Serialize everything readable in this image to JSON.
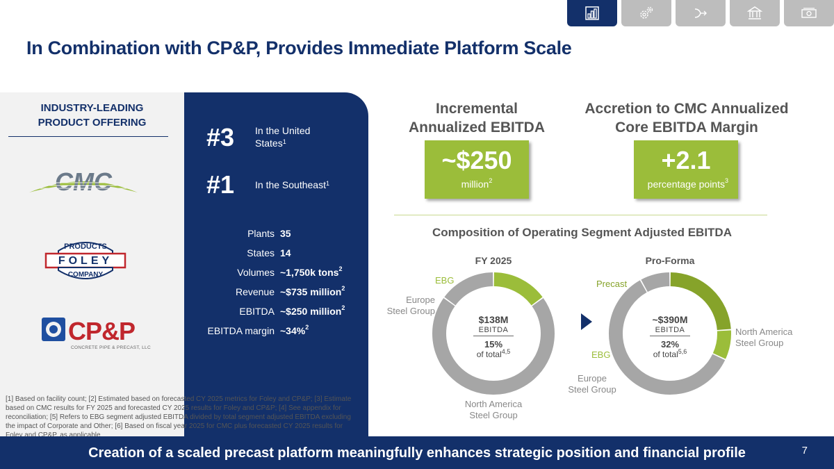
{
  "nav": {
    "tabs": [
      {
        "icon": "bar-chart-icon",
        "active": true
      },
      {
        "icon": "gears-icon",
        "active": false
      },
      {
        "icon": "merge-arrow-icon",
        "active": false
      },
      {
        "icon": "bank-icon",
        "active": false
      },
      {
        "icon": "money-icon",
        "active": false
      }
    ]
  },
  "title": "In Combination with CP&P, Provides Immediate Platform Scale",
  "left": {
    "heading_line1": "INDUSTRY-LEADING",
    "heading_line2": "PRODUCT OFFERING",
    "logos": {
      "cmc": "CMC",
      "foley_top": "PRODUCTS",
      "foley_mid": "FOLEY",
      "foley_bottom": "COMPANY",
      "cpp": "CP&P",
      "cpp_sub": "CONCRETE PIPE & PRECAST, LLC"
    }
  },
  "rankings": [
    {
      "rank": "#3",
      "desc_line1": "In the United",
      "desc_line2": "States",
      "sup": "1"
    },
    {
      "rank": "#1",
      "desc_line1": "In the Southeast",
      "desc_line2": "",
      "sup": "1"
    }
  ],
  "stats": [
    {
      "label": "Plants",
      "value": "35",
      "sup": ""
    },
    {
      "label": "States",
      "value": "14",
      "sup": ""
    },
    {
      "label": "Volumes",
      "value": "~1,750k tons",
      "sup": "2"
    },
    {
      "label": "Revenue",
      "value": "~$735 million",
      "sup": "2"
    },
    {
      "label": "EBITDA",
      "value": "~$250 million",
      "sup": "2"
    },
    {
      "label": "EBITDA margin",
      "value": "~34%",
      "sup": "2"
    }
  ],
  "footnotes": "[1] Based on facility count; [2] Estimated based on forecasted CY 2025 metrics for Foley and CP&P; [3] Estimate based on CMC results for FY 2025 and forecasted CY 2025 results for Foley and CP&P; [4] See appendix for reconciliation; [5] Refers to EBG segment adjusted EBITDA divided by total segment adjusted EBITDA excluding the impact of Corporate and Other; [6] Based on fiscal year 2025 for CMC plus forecasted CY 2025 results for Foley and CP&P, as applicable",
  "kpis": [
    {
      "title_line1": "Incremental",
      "title_line2": "Annualized EBITDA",
      "big": "~$250",
      "small": "million",
      "sup": "2"
    },
    {
      "title_line1": "Accretion to CMC Annualized",
      "title_line2": "Core EBITDA Margin",
      "big": "+2.1",
      "small": "percentage points",
      "sup": "3"
    }
  ],
  "composition_title": "Composition of Operating Segment Adjusted EBITDA",
  "colors": {
    "navy": "#13306a",
    "green": "#9bbd3a",
    "dark_green": "#86a32a",
    "grey": "#a6a6a6"
  },
  "chart_data": [
    {
      "type": "pie",
      "title": "FY 2025",
      "donut": true,
      "categories": [
        "EBG",
        "North America Steel Group",
        "Europe Steel Group"
      ],
      "values": [
        15,
        70,
        15
      ],
      "colors": [
        "#9bbd3a",
        "#a6a6a6",
        "#a6a6a6"
      ],
      "center": {
        "value": "$138M",
        "label": "EBITDA",
        "pct": "15%",
        "note": "of total",
        "note_sup": "4,5"
      },
      "labels": {
        "ebg": "EBG",
        "europe_line1": "Europe",
        "europe_line2": "Steel Group",
        "na_line1": "North America",
        "na_line2": "Steel Group"
      }
    },
    {
      "type": "pie",
      "title": "Pro-Forma",
      "donut": true,
      "categories": [
        "Precast",
        "EBG",
        "North America Steel Group",
        "Europe Steel Group"
      ],
      "values": [
        24,
        8,
        60,
        8
      ],
      "colors": [
        "#86a32a",
        "#9bbd3a",
        "#a6a6a6",
        "#a6a6a6"
      ],
      "center": {
        "value": "~$390M",
        "label": "EBITDA",
        "pct": "32%",
        "note": "of total",
        "note_sup": "5,6"
      },
      "labels": {
        "precast": "Precast",
        "ebg": "EBG",
        "europe_line1": "Europe",
        "europe_line2": "Steel Group",
        "na_line1": "North America",
        "na_line2": "Steel Group"
      }
    }
  ],
  "footer": {
    "text": "Creation of a scaled precast platform meaningfully enhances strategic position and financial profile",
    "page": "7"
  }
}
